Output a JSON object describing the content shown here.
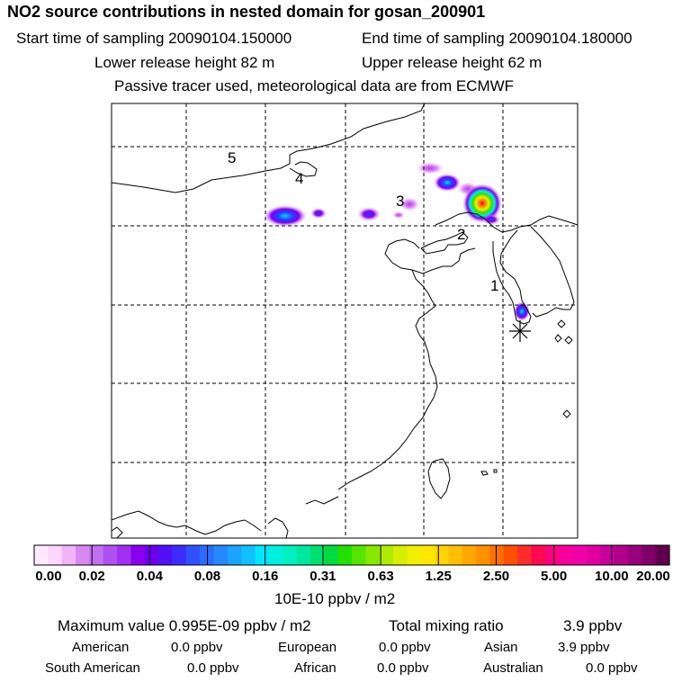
{
  "header": {
    "title": "NO2 source contributions in nested domain for gosan_200901",
    "start": "Start time of sampling 20090104.150000",
    "end": "End time of sampling 20090104.180000",
    "lower": "Lower release height   82 m",
    "upper": "Upper release height   62 m",
    "tracer": "Passive tracer used, meteorological data are from ECMWF"
  },
  "map": {
    "region_labels": [
      "5",
      "4",
      "3",
      "2",
      "1"
    ],
    "receptor_icon": "asterisk-receptor-icon"
  },
  "colorbar": {
    "ticks": [
      "0.00",
      "0.02",
      "0.04",
      "0.08",
      "0.16",
      "0.31",
      "0.63",
      "1.25",
      "2.50",
      "5.00",
      "10.00",
      "20.00"
    ],
    "colors": [
      "#ffeaff",
      "#fcd6fc",
      "#f0b4f8",
      "#d888f0",
      "#c070f0",
      "#b050f0",
      "#a030f0",
      "#8800ee",
      "#6a00ee",
      "#5010f8",
      "#3c2cff",
      "#3050ff",
      "#2a6cff",
      "#2488ff",
      "#18a4ff",
      "#10c0ff",
      "#00e8ff",
      "#00f0e0",
      "#00f0c0",
      "#00e8a0",
      "#00e070",
      "#00dc40",
      "#22e000",
      "#55e400",
      "#88e800",
      "#b0ec00",
      "#d8ee00",
      "#f0f000",
      "#ffe800",
      "#ffd400",
      "#ffc000",
      "#ffa800",
      "#ff9000",
      "#ff7000",
      "#ff5000",
      "#ff2c2c",
      "#ff0a50",
      "#ff0080",
      "#f8009c",
      "#f000a8",
      "#e000a0",
      "#c8009c",
      "#b0008c",
      "#98007c",
      "#80006a",
      "#60004c"
    ],
    "unit": "10E-10 ppbv / m2"
  },
  "summary": {
    "max_label": "Maximum value  0.995E-09 ppbv / m2",
    "total_label": "Total mixing ratio",
    "total_value": "3.9 ppbv",
    "regions": [
      {
        "name": "American",
        "value": "0.0 ppbv"
      },
      {
        "name": "European",
        "value": "0.0 ppbv"
      },
      {
        "name": "Asian",
        "value": "3.9 ppbv"
      },
      {
        "name": "South American",
        "value": "0.0 ppbv"
      },
      {
        "name": "African",
        "value": "0.0 ppbv"
      },
      {
        "name": "Australian",
        "value": "0.0 ppbv"
      }
    ]
  }
}
